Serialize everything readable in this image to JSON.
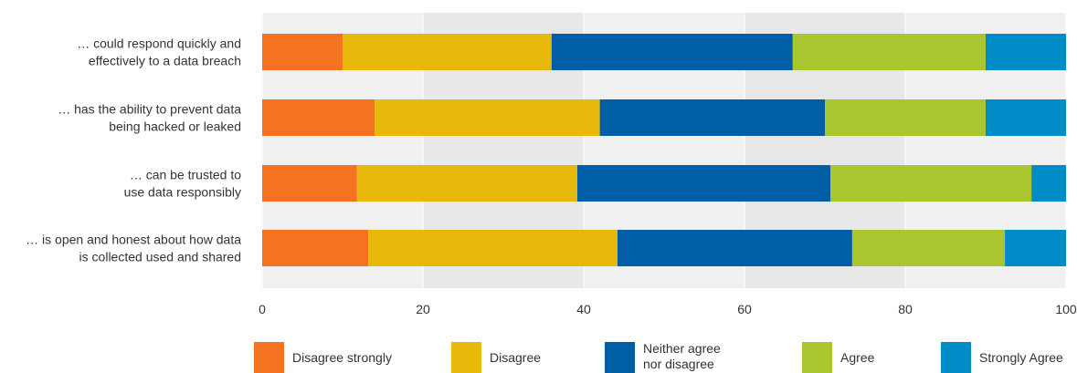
{
  "chart_data": {
    "type": "bar",
    "orientation": "horizontal",
    "stacked": true,
    "categories": [
      [
        "… could respond quickly and",
        "effectively to a data breach"
      ],
      [
        "… has the ability to prevent data",
        "being hacked or leaked"
      ],
      [
        "… can be trusted to",
        "use data responsibly"
      ],
      [
        "… is open and honest about how data",
        "is collected used and shared"
      ]
    ],
    "series": [
      {
        "name": "Disagree strongly",
        "color": "#F47321",
        "values": [
          10,
          14,
          11.8,
          13.2
        ]
      },
      {
        "name": "Disagree",
        "color": "#E8B80B",
        "values": [
          26,
          28,
          27.4,
          31
        ]
      },
      {
        "name": "Neither agree nor disagree",
        "color": "#005EA6",
        "values": [
          30,
          28,
          31.5,
          29.2
        ]
      },
      {
        "name": "Agree",
        "color": "#A9C52F",
        "values": [
          24,
          20,
          25,
          19
        ]
      },
      {
        "name": "Strongly Agree",
        "color": "#008CC6",
        "values": [
          10,
          10,
          4.3,
          7.6
        ]
      }
    ],
    "xlim": [
      0,
      100
    ],
    "xticks": [
      "0",
      "20",
      "40",
      "60",
      "80",
      "100"
    ],
    "grid": true,
    "legend_position": "bottom"
  }
}
